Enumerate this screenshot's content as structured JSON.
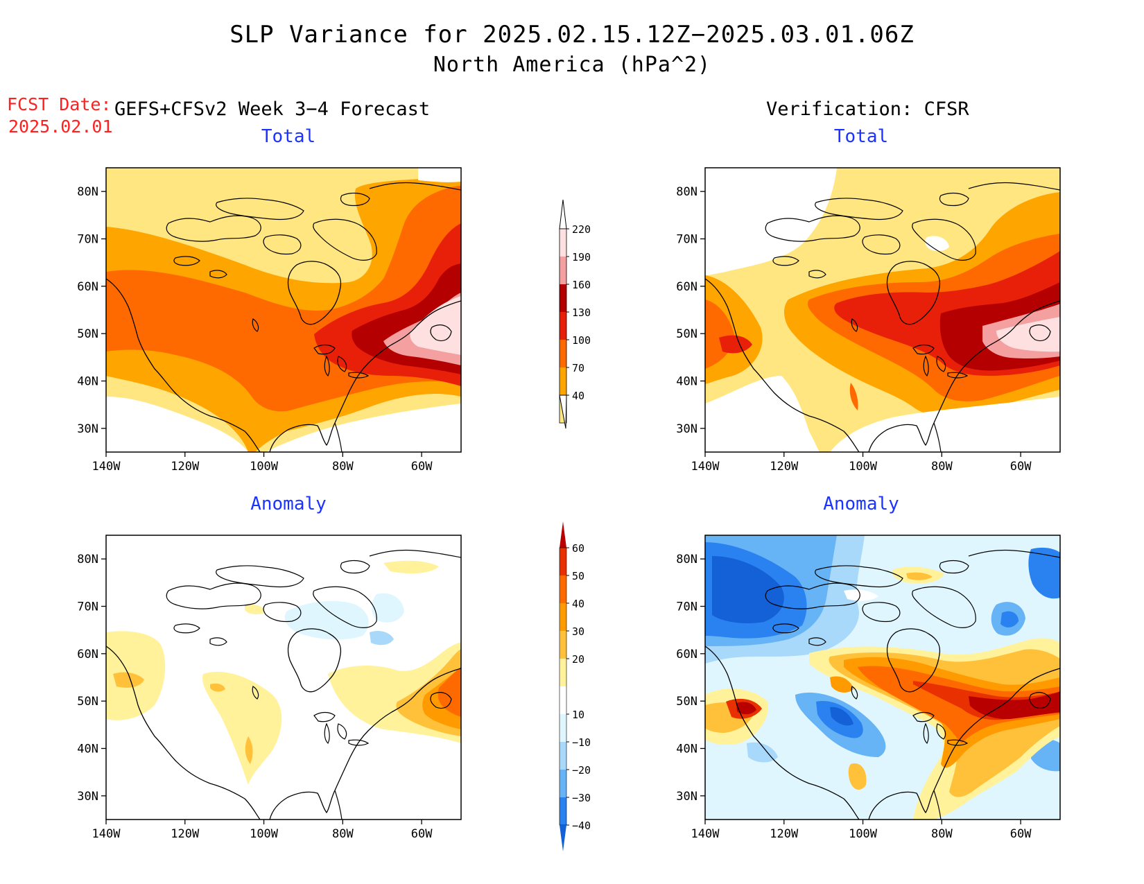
{
  "title": "SLP Variance for 2025.02.15.12Z−2025.03.01.06Z",
  "subtitle": "North America (hPa^2)",
  "forecast_date_label": "FCST Date:",
  "forecast_date": "2025.02.01",
  "forecast_model": "GEFS+CFSv2 Week 3−4 Forecast",
  "verification": "Verification: CFSR",
  "panels": [
    {
      "title": "Total"
    },
    {
      "title": "Total"
    },
    {
      "title": "Anomaly"
    },
    {
      "title": "Anomaly"
    }
  ],
  "axes": {
    "lon_ticks": [
      "140W",
      "120W",
      "100W",
      "80W",
      "60W"
    ],
    "lat_ticks": [
      "80N",
      "70N",
      "60N",
      "50N",
      "40N",
      "30N"
    ]
  },
  "colorbar_total": {
    "levels": [
      "40",
      "70",
      "100",
      "130",
      "160",
      "190",
      "220"
    ],
    "colors": [
      "#ffe680",
      "#ffa500",
      "#ff6a00",
      "#e8200a",
      "#b40000",
      "#f4a0a0",
      "#ffe0e0"
    ]
  },
  "colorbar_anomaly": {
    "levels": [
      "−40",
      "−30",
      "−20",
      "−10",
      "10",
      "20",
      "30",
      "40",
      "50",
      "60"
    ],
    "colors": [
      "#1460d6",
      "#2a82f0",
      "#66b4f5",
      "#a8d8fa",
      "#e0f6ff",
      "#ffffff",
      "#fff29a",
      "#ffc13a",
      "#ff9a00",
      "#ff6a00",
      "#e83000",
      "#b80000"
    ]
  },
  "colors": {
    "title_text": "#000000",
    "fcst_text": "#ff2020",
    "panel_title": "#1a33ff"
  }
}
